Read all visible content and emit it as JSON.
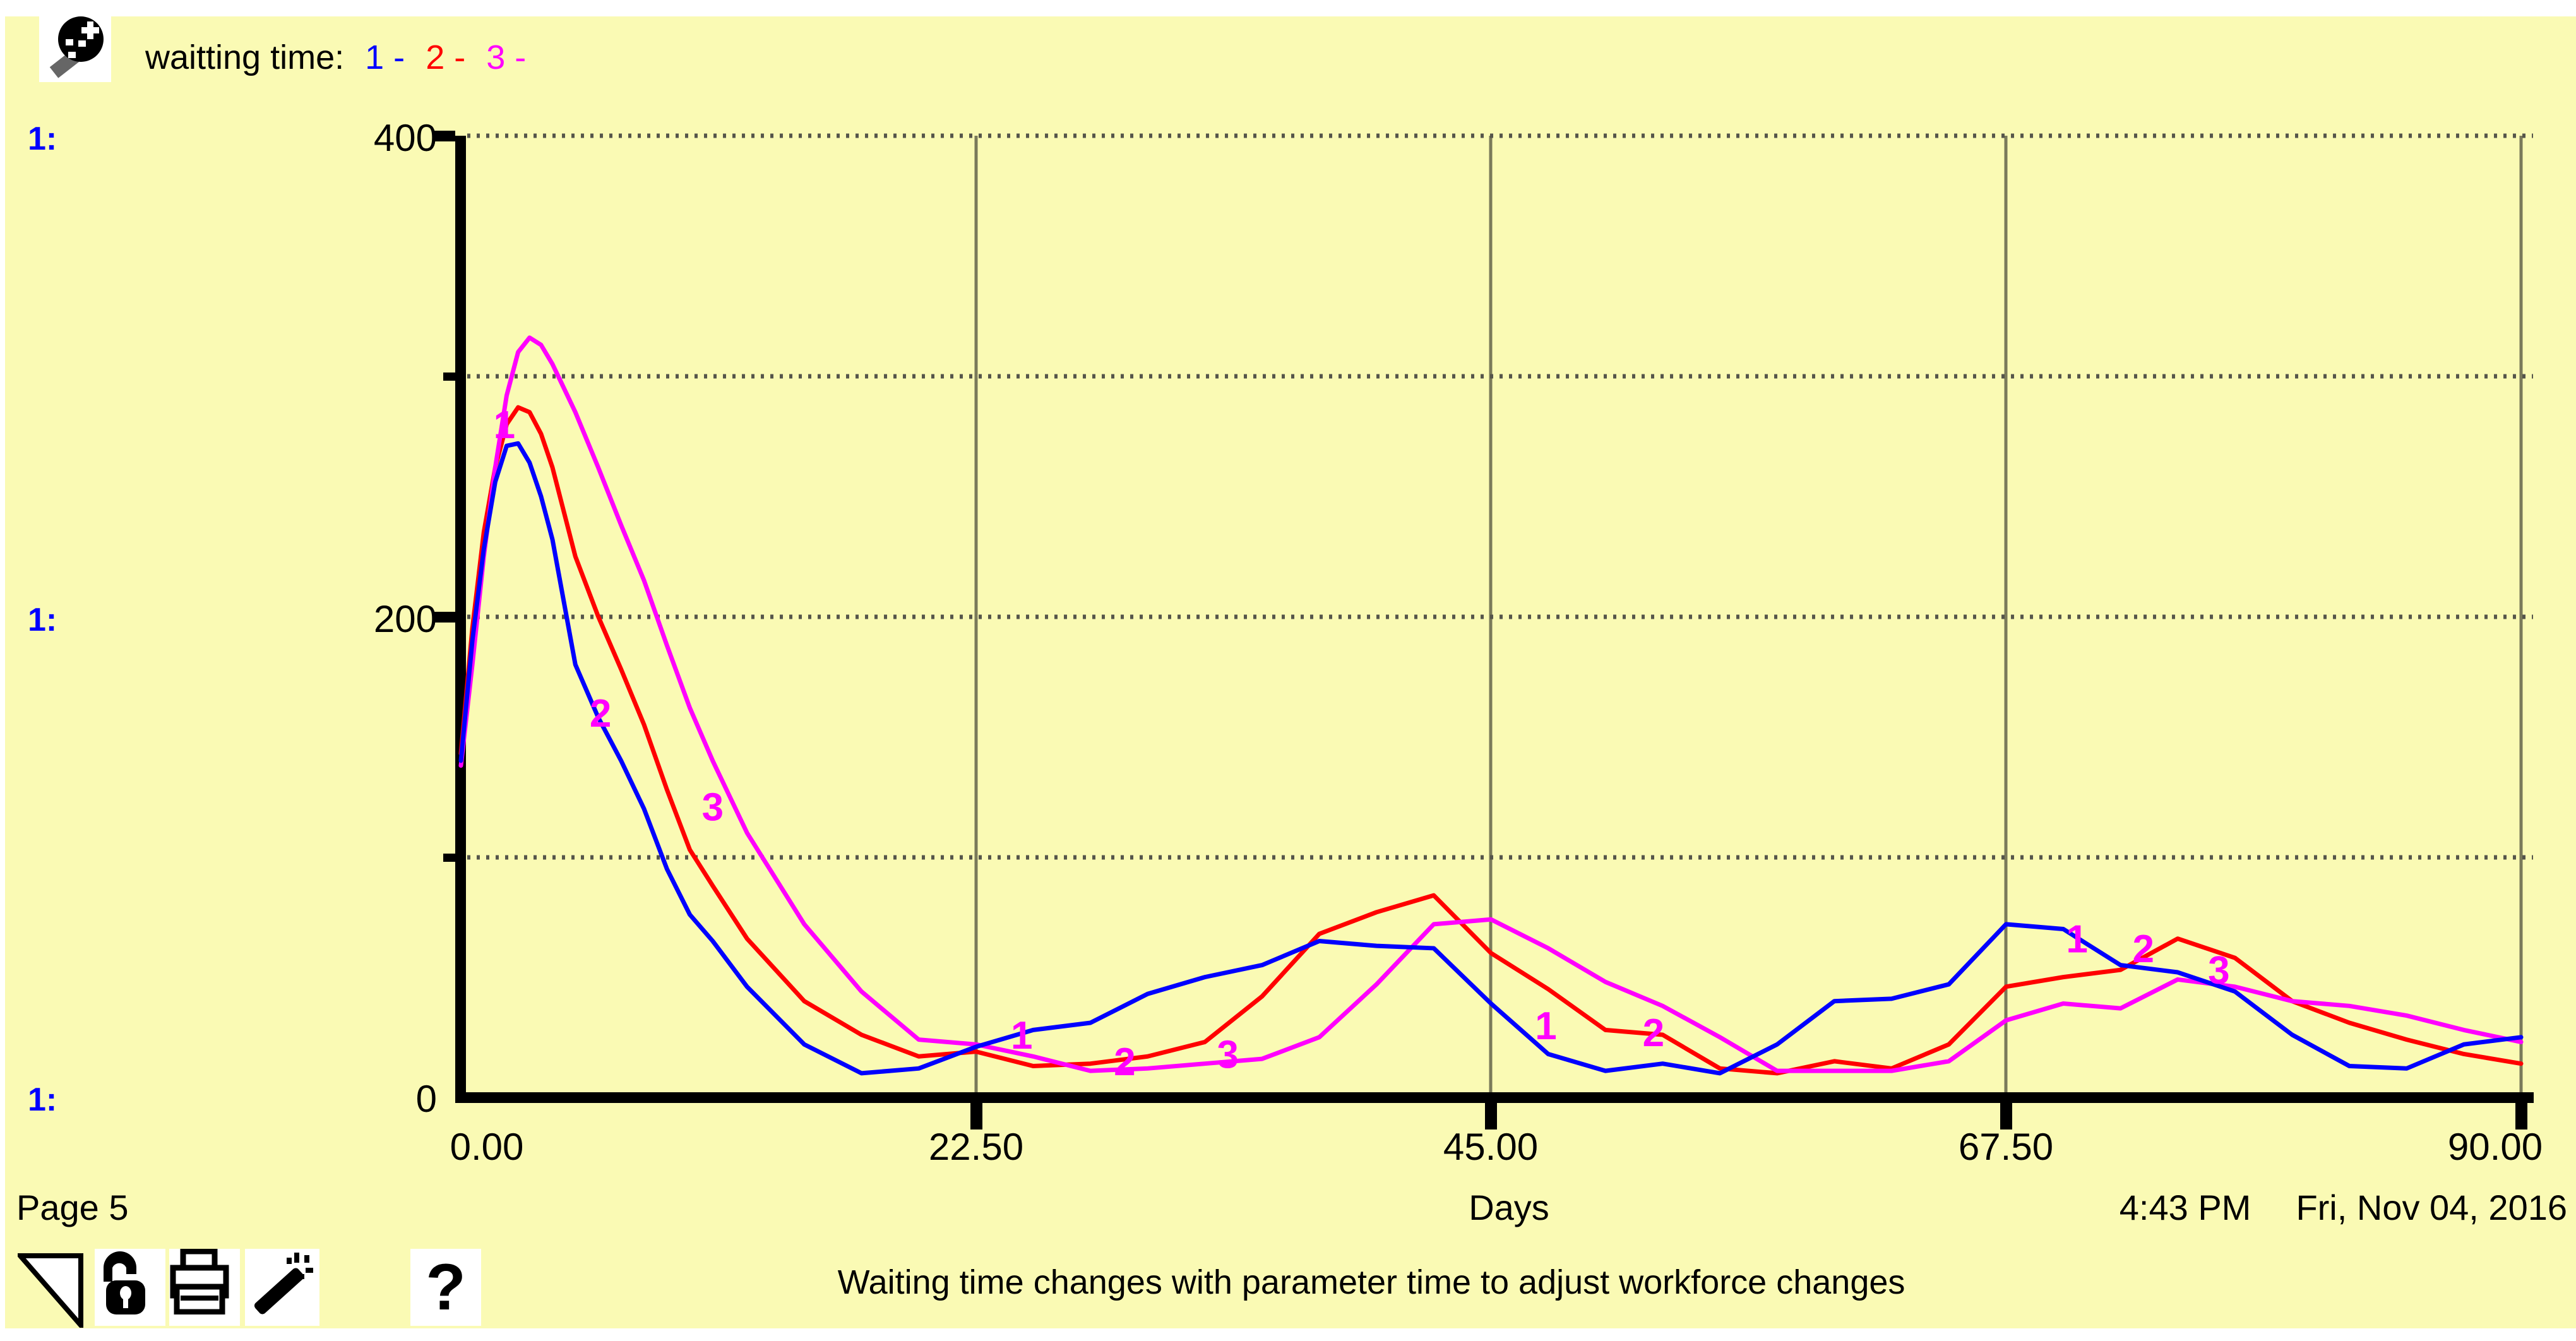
{
  "header": {
    "icon": "graph-pad-pin-icon",
    "legend_title": "waitting time:",
    "legend_items": [
      {
        "label": "1 -",
        "color": "#0000ff"
      },
      {
        "label": "2 -",
        "color": "#ff0000"
      },
      {
        "label": "3 -",
        "color": "#ff00ff"
      }
    ]
  },
  "left_scale_labels": {
    "color": "#0000ff",
    "items": [
      "1:",
      "1:",
      "1:"
    ]
  },
  "chart_data": {
    "type": "line",
    "title": "waitting time",
    "xlabel": "Days",
    "ylabel": "",
    "xlim": [
      0,
      90
    ],
    "ylim": [
      0,
      400
    ],
    "grid": {
      "vertical_solid_at": [
        22.5,
        45,
        67.5,
        90
      ],
      "horizontal_dotted_at": [
        100,
        200,
        300,
        400
      ],
      "legend_position": "top-left"
    },
    "x_ticks": {
      "values": [
        0,
        22.5,
        45,
        67.5,
        90
      ],
      "labels": [
        "0.00",
        "22.50",
        "45.00",
        "67.50",
        "90.00"
      ]
    },
    "y_ticks": {
      "values": [
        0,
        200,
        400
      ],
      "labels": [
        "0",
        "200",
        "400"
      ],
      "minor_values": [
        100,
        300
      ]
    },
    "x": [
      0,
      0.5,
      1,
      1.5,
      2,
      2.5,
      3,
      3.5,
      4,
      5,
      6,
      7,
      8,
      9,
      10,
      11,
      12.5,
      15,
      17.5,
      20,
      22.5,
      25,
      27.5,
      30,
      32.5,
      35,
      37.5,
      40,
      42.5,
      45,
      47.5,
      50,
      52.5,
      55,
      57.5,
      60,
      62.5,
      65,
      67.5,
      70,
      72.5,
      75,
      77.5,
      80,
      82.5,
      85,
      87.5,
      90
    ],
    "series": [
      {
        "name": "1",
        "color": "#0000ff",
        "values": [
          140,
          190,
          228,
          256,
          271,
          272,
          264,
          250,
          232,
          180,
          158,
          140,
          120,
          95,
          76,
          65,
          46,
          22,
          10,
          12,
          21,
          28,
          31,
          43,
          50,
          55,
          65,
          63,
          62,
          39,
          18,
          11,
          14,
          10,
          22,
          40,
          41,
          47,
          72,
          70,
          55,
          52,
          44,
          26,
          13,
          12,
          22,
          25
        ]
      },
      {
        "name": "2",
        "color": "#ff0000",
        "values": [
          143,
          195,
          235,
          262,
          280,
          287,
          285,
          276,
          262,
          225,
          200,
          178,
          155,
          128,
          103,
          88,
          66,
          40,
          26,
          17,
          19,
          13,
          14,
          17,
          23,
          42,
          68,
          77,
          84,
          60,
          45,
          28,
          26,
          12,
          10,
          15,
          12,
          22,
          46,
          50,
          53,
          66,
          58,
          40,
          31,
          24,
          18,
          14
        ]
      },
      {
        "name": "3",
        "color": "#ff00ff",
        "values": [
          138,
          180,
          225,
          262,
          292,
          310,
          316,
          313,
          305,
          285,
          262,
          238,
          215,
          188,
          162,
          140,
          110,
          72,
          44,
          24,
          22,
          17,
          11,
          12,
          14,
          16,
          25,
          47,
          72,
          74,
          62,
          48,
          38,
          25,
          11,
          11,
          11,
          15,
          32,
          39,
          37,
          49,
          46,
          40,
          38,
          34,
          28,
          23
        ]
      }
    ],
    "curve_label_color": "#ff00ff",
    "curve_labels": [
      {
        "text": "1",
        "x": 1.9,
        "y": 280
      },
      {
        "text": "2",
        "x": 6.1,
        "y": 160
      },
      {
        "text": "3",
        "x": 11.0,
        "y": 121
      },
      {
        "text": "1",
        "x": 24.5,
        "y": 26
      },
      {
        "text": "2",
        "x": 29.0,
        "y": 15
      },
      {
        "text": "3",
        "x": 33.5,
        "y": 18
      },
      {
        "text": "1",
        "x": 47.4,
        "y": 30
      },
      {
        "text": "2",
        "x": 52.1,
        "y": 27
      },
      {
        "text": "1",
        "x": 70.6,
        "y": 66
      },
      {
        "text": "2",
        "x": 73.5,
        "y": 62
      },
      {
        "text": "3",
        "x": 76.8,
        "y": 53
      }
    ]
  },
  "footer": {
    "page": "Page 5",
    "xlabel": "Days",
    "time": "4:43 PM",
    "date": "Fri, Nov 04, 2016",
    "caption": "Waiting time changes with parameter time to adjust workforce changes",
    "help_glyph": "?"
  },
  "toolbar_icons": [
    "corner-triangle",
    "lock-open",
    "printer",
    "magic-wand",
    "help"
  ],
  "colors": {
    "background": "#fafab4",
    "axis": "#000000",
    "vertical_grid": "#7a7a5a",
    "dotted_grid": "#55554a",
    "series1": "#0000ff",
    "series2": "#ff0000",
    "series3": "#ff00ff",
    "curve_label": "#ff00ff"
  }
}
